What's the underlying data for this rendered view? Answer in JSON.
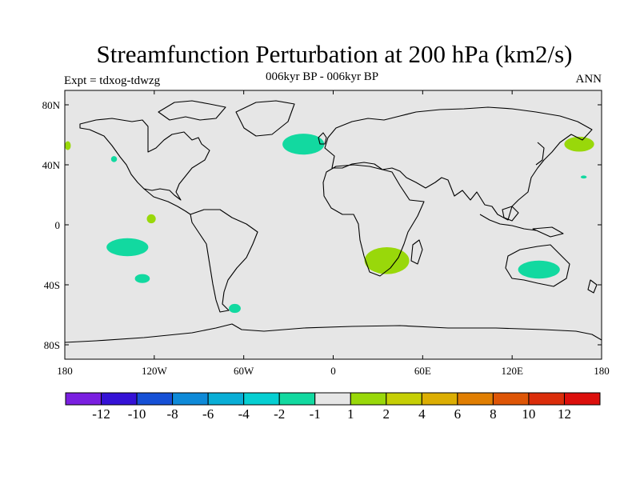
{
  "title": "Streamfunction Perturbation at 200 hPa (km2/s)",
  "subtitle": "006kyr BP - 006kyr BP",
  "experiment": "Expt = tdxog-tdwzg",
  "season": "ANN",
  "colors": {
    "ocean": "#e6e6e6",
    "land_outline": "#000000",
    "negative_fill": "#12d9a0",
    "positive_fill": "#99d80a"
  },
  "axes": {
    "lon_ticks": [
      "180",
      "120W",
      "60W",
      "0",
      "60E",
      "120E",
      "180"
    ],
    "lat_ticks": [
      "80N",
      "40N",
      "0",
      "40S",
      "80S"
    ]
  },
  "colorbar": {
    "colors": [
      "#7a1fe0",
      "#3512d6",
      "#1650d6",
      "#0e8ad8",
      "#09aed6",
      "#06cfd2",
      "#12d9a0",
      "#e6e6e6",
      "#99d80a",
      "#c6cf05",
      "#dcae03",
      "#e07e02",
      "#de5506",
      "#db2d0a",
      "#dc0f0c"
    ],
    "labels": [
      "-12",
      "-10",
      "-8",
      "-6",
      "-4",
      "-2",
      "-1",
      "1",
      "2",
      "4",
      "6",
      "8",
      "10",
      "12"
    ]
  },
  "anomalies": [
    {
      "name": "north-atlantic",
      "sign": "negative",
      "lon": -20,
      "lat": 54,
      "rlon": 14,
      "rlat": 7
    },
    {
      "name": "southern-africa",
      "sign": "positive",
      "lon": 36,
      "lat": -24,
      "rlon": 15,
      "rlat": 9
    },
    {
      "name": "australia",
      "sign": "negative",
      "lon": 138,
      "lat": -30,
      "rlon": 14,
      "rlat": 6
    },
    {
      "name": "south-pacific-west",
      "sign": "negative",
      "lon": -138,
      "lat": -15,
      "rlon": 14,
      "rlat": 6
    },
    {
      "name": "south-pacific-small",
      "sign": "negative",
      "lon": -128,
      "lat": -36,
      "rlon": 5,
      "rlat": 3
    },
    {
      "name": "equatorial-pacific",
      "sign": "positive",
      "lon": -122,
      "lat": 4,
      "rlon": 3,
      "rlat": 3
    },
    {
      "name": "north-pacific",
      "sign": "negative",
      "lon": -147,
      "lat": 44,
      "rlon": 2,
      "rlat": 2
    },
    {
      "name": "kamchatka",
      "sign": "positive",
      "lon": 165,
      "lat": 54,
      "rlon": 10,
      "rlat": 5
    },
    {
      "name": "alaska-edge",
      "sign": "positive",
      "lon": -178,
      "lat": 53,
      "rlon": 2,
      "rlat": 3
    },
    {
      "name": "west-pacific-small",
      "sign": "negative",
      "lon": 168,
      "lat": 32,
      "rlon": 2,
      "rlat": 1
    },
    {
      "name": "drake-passage",
      "sign": "negative",
      "lon": -66,
      "lat": -56,
      "rlon": 4,
      "rlat": 3
    }
  ]
}
